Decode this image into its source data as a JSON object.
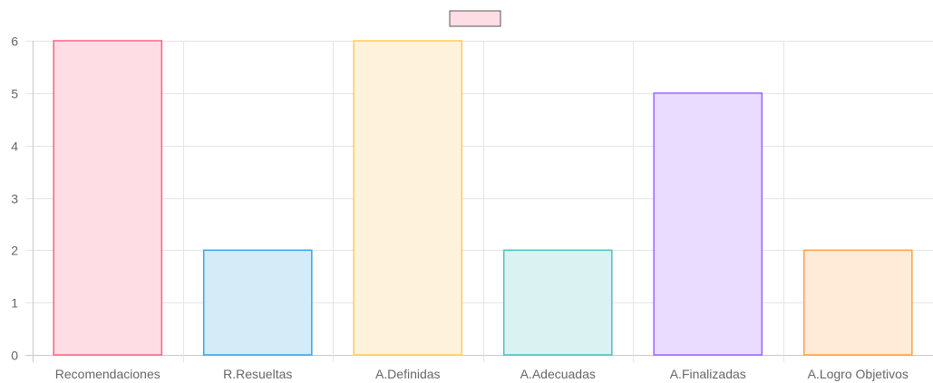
{
  "chart_data": {
    "type": "bar",
    "categories": [
      "Recomendaciones",
      "R.Resueltas",
      "A.Definidas",
      "A.Adecuadas",
      "A.Finalizadas",
      "A.Logro Objetivos"
    ],
    "values": [
      6,
      2,
      6,
      2,
      5,
      2
    ],
    "ylim": [
      0,
      6
    ],
    "yticks": [
      0,
      1,
      2,
      3,
      4,
      5,
      6
    ],
    "grid": true,
    "legend": "top-center",
    "legend_label": "",
    "fill_colors": [
      "#ffdde4",
      "#d6ebf8",
      "#fff2dc",
      "#daf2f2",
      "#e9dcff",
      "#ffebd8"
    ],
    "border_colors": [
      "#ff6384",
      "#36a2eb",
      "#ffcd56",
      "#4bc0c0",
      "#9966ff",
      "#ff9f40"
    ]
  }
}
